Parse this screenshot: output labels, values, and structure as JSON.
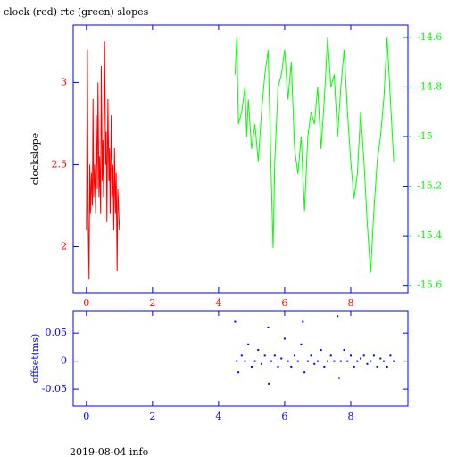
{
  "chart_data": [
    {
      "type": "line",
      "title": "clock (red) rtc (green) slopes",
      "ylabel": "clockslope",
      "xlim": [
        -0.4,
        9.73
      ],
      "xticks": [
        0,
        2,
        4,
        6,
        8
      ],
      "ylim": [
        1.72,
        3.35
      ],
      "yticks": [
        2,
        2.5,
        3
      ],
      "y2lim": [
        -15.63,
        -14.55
      ],
      "y2ticks": [
        -14.6,
        -14.8,
        -15,
        -15.2,
        -15.4,
        -15.6
      ],
      "axis_color": "#ff0000",
      "y2_color": "#00ff00",
      "series": [
        {
          "color": "#ff0000",
          "x": [
            0,
            0.03,
            0.05,
            0.08,
            0.1,
            0.12,
            0.15,
            0.18,
            0.2,
            0.22,
            0.25,
            0.28,
            0.3,
            0.33,
            0.35,
            0.38,
            0.4,
            0.43,
            0.45,
            0.48,
            0.5,
            0.52,
            0.55,
            0.58,
            0.6,
            0.62,
            0.65,
            0.68,
            0.7,
            0.72,
            0.75,
            0.78,
            0.8,
            0.83,
            0.85,
            0.88,
            0.9,
            0.93,
            0.95,
            1.0
          ],
          "values": [
            2.1,
            3.2,
            2.2,
            1.8,
            2.5,
            2.2,
            2.45,
            2.25,
            2.9,
            2.3,
            2.5,
            2.2,
            2.8,
            2.35,
            3.0,
            2.3,
            2.55,
            2.2,
            3.1,
            2.4,
            2.65,
            2.3,
            3.25,
            2.5,
            2.7,
            2.15,
            2.9,
            2.4,
            2.6,
            2.2,
            2.8,
            2.3,
            2.5,
            2.1,
            2.6,
            2.2,
            2.45,
            1.85,
            2.35,
            2.1
          ]
        },
        {
          "color": "#00ff00",
          "axis": "y2",
          "x": [
            4.5,
            4.55,
            4.6,
            4.7,
            4.8,
            4.85,
            4.9,
            5.0,
            5.1,
            5.2,
            5.3,
            5.4,
            5.5,
            5.6,
            5.65,
            5.7,
            5.8,
            5.9,
            6.0,
            6.1,
            6.2,
            6.3,
            6.4,
            6.5,
            6.6,
            6.7,
            6.8,
            6.9,
            7.0,
            7.1,
            7.2,
            7.3,
            7.4,
            7.5,
            7.6,
            7.7,
            7.8,
            7.9,
            8.0,
            8.1,
            8.2,
            8.3,
            8.4,
            8.5,
            8.6,
            8.7,
            8.8,
            8.9,
            9.0,
            9.1,
            9.2,
            9.3
          ],
          "values": [
            -14.75,
            -14.6,
            -14.95,
            -14.9,
            -14.8,
            -15.0,
            -14.85,
            -15.05,
            -14.95,
            -15.1,
            -14.9,
            -14.75,
            -14.65,
            -15.2,
            -15.45,
            -15.1,
            -14.8,
            -14.75,
            -14.65,
            -14.85,
            -14.7,
            -15.05,
            -15.15,
            -15.0,
            -15.3,
            -15.0,
            -14.9,
            -14.95,
            -14.8,
            -15.05,
            -14.85,
            -14.6,
            -14.8,
            -14.75,
            -15.0,
            -14.8,
            -14.65,
            -14.9,
            -15.1,
            -15.25,
            -15.15,
            -14.9,
            -15.1,
            -15.35,
            -15.55,
            -15.3,
            -15.1,
            -15.0,
            -14.85,
            -14.6,
            -14.85,
            -15.1
          ]
        }
      ]
    },
    {
      "type": "scatter",
      "ylabel": "offset(ms)",
      "xlim": [
        -0.4,
        9.73
      ],
      "xticks": [
        0,
        2,
        4,
        6,
        8
      ],
      "ylim": [
        -0.08,
        0.09
      ],
      "yticks": [
        0.05,
        0,
        -0.05
      ],
      "axis_color": "#0000ff",
      "series": [
        {
          "color": "#0000ff",
          "x": [
            4.5,
            4.55,
            4.6,
            4.7,
            4.8,
            4.9,
            5.0,
            5.1,
            5.2,
            5.3,
            5.4,
            5.5,
            5.52,
            5.6,
            5.7,
            5.8,
            5.9,
            6.0,
            6.1,
            6.2,
            6.3,
            6.4,
            6.5,
            6.55,
            6.6,
            6.7,
            6.8,
            6.9,
            7.0,
            7.1,
            7.2,
            7.3,
            7.4,
            7.5,
            7.6,
            7.65,
            7.7,
            7.8,
            7.9,
            8.0,
            8.1,
            8.2,
            8.3,
            8.4,
            8.5,
            8.6,
            8.7,
            8.8,
            8.9,
            9.0,
            9.1,
            9.2,
            9.3
          ],
          "values": [
            0.07,
            0.0,
            -0.02,
            0.01,
            0.0,
            0.03,
            -0.01,
            0.0,
            0.02,
            -0.005,
            0.01,
            0.06,
            -0.04,
            0.0,
            0.01,
            -0.01,
            0.005,
            0.04,
            0.0,
            -0.01,
            0.01,
            0.0,
            0.03,
            0.07,
            -0.02,
            0.0,
            0.01,
            -0.005,
            0.0,
            0.02,
            -0.01,
            0.0,
            0.01,
            0.0,
            0.08,
            -0.03,
            0.0,
            0.02,
            0.0,
            0.01,
            -0.01,
            0.0,
            0.005,
            0.01,
            -0.005,
            0.0,
            0.01,
            -0.01,
            0.005,
            0.0,
            -0.01,
            0.01,
            0.0
          ]
        }
      ]
    }
  ],
  "footer": "2019-08-04 info"
}
